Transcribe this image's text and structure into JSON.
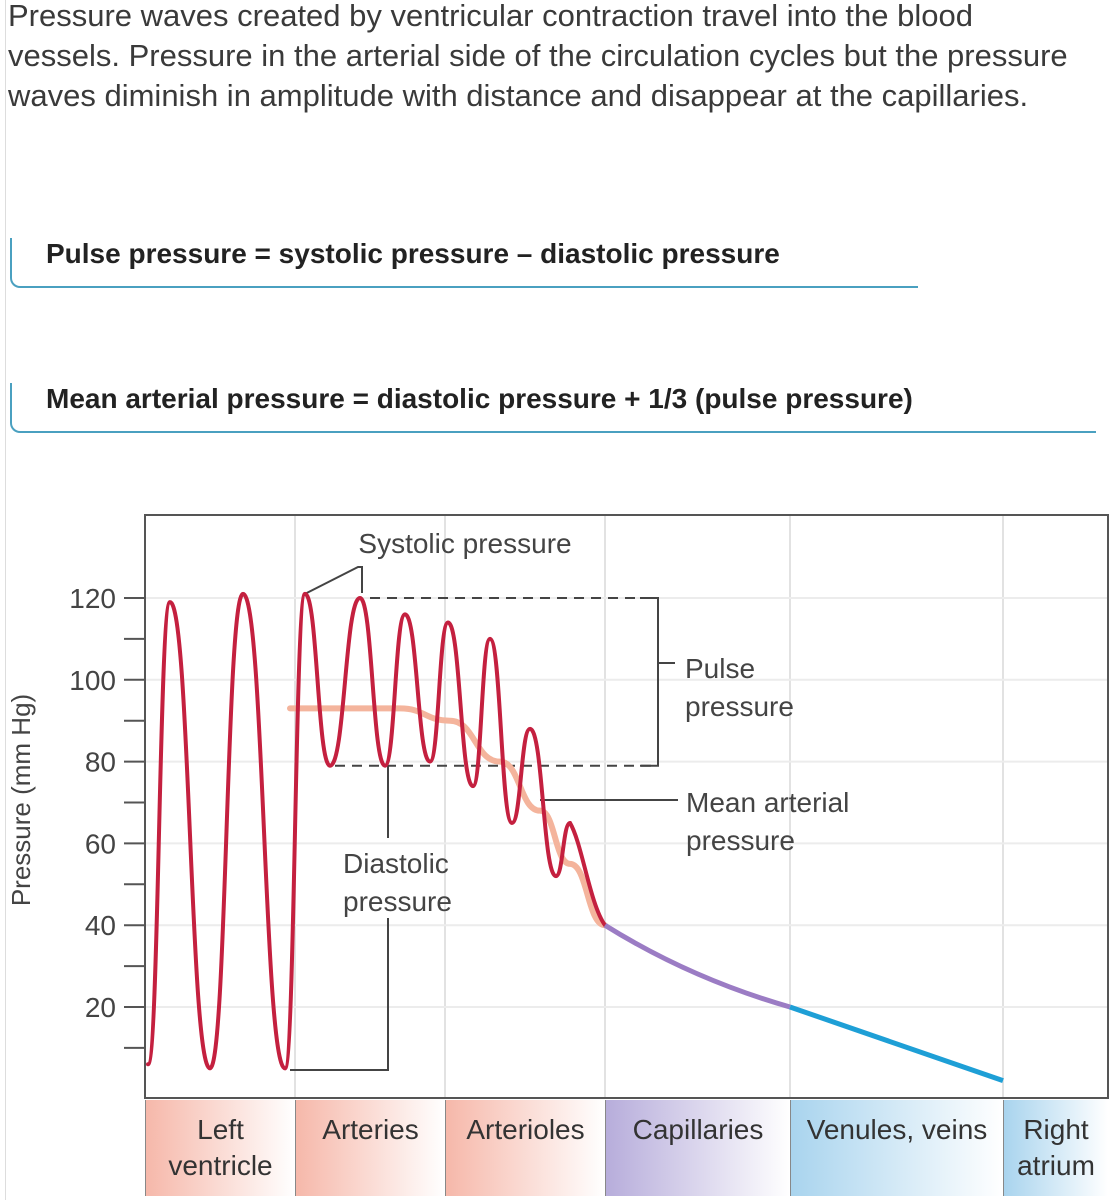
{
  "intro_text": "Pressure waves created by ventricular contraction travel into the blood vessels. Pressure in the arterial side of the circulation cycles but the pressure waves diminish in amplitude with distance and disappear at the capillaries.",
  "formulas": [
    "Pulse pressure = systolic pressure – diastolic pressure",
    "Mean arterial pressure = diastolic pressure + 1/3 (pulse pressure)"
  ],
  "chart_data": {
    "type": "line",
    "ylabel": "Pressure (mm Hg)",
    "ylim": [
      0,
      130
    ],
    "yticks": [
      20,
      40,
      60,
      80,
      100,
      120
    ],
    "grid": true,
    "categories": [
      "Left ventricle",
      "Arteries",
      "Arterioles",
      "Capillaries",
      "Venules, veins",
      "Right atrium"
    ],
    "category_colors": [
      "#f6b8aa",
      "#f6b8aa",
      "#f6b8aa",
      "#b7addb",
      "#a9d4ee",
      "#a9d4ee"
    ],
    "pressure_extrema": [
      6,
      119,
      5,
      121,
      5,
      121,
      79,
      120,
      79,
      116,
      80,
      114,
      74,
      110,
      65,
      88,
      52,
      65
    ],
    "decay_values": [
      40,
      20,
      2
    ],
    "mean_arterial_pressure": [
      93,
      93,
      90,
      80,
      68,
      55,
      40
    ],
    "systolic_level": 120,
    "diastolic_level": 79,
    "colors": {
      "pressure": "#c4203f",
      "mean": "#f4b49c",
      "capillary": "#9b7cc4",
      "venous": "#1e9fd6"
    },
    "annotations": {
      "systolic": "Systolic pressure",
      "diastolic": "Diastolic pressure",
      "pulse": "Pulse pressure",
      "mean": "Mean arterial pressure"
    }
  }
}
